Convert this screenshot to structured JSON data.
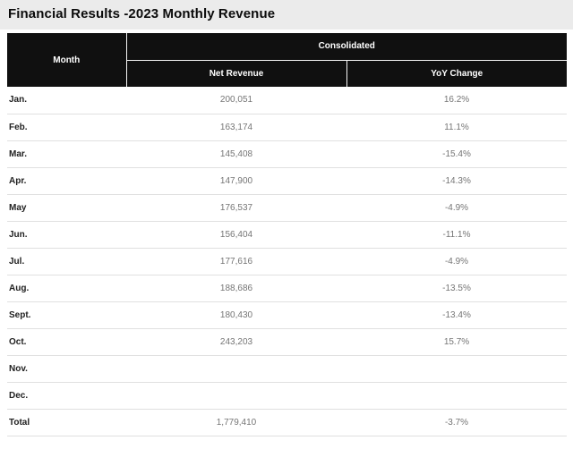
{
  "page": {
    "title": "Financial Results -2023 Monthly Revenue"
  },
  "table": {
    "header": {
      "month": "Month",
      "group": "Consolidated",
      "columns": [
        "Net Revenue",
        "YoY Change"
      ]
    },
    "rows": [
      {
        "month": "Jan.",
        "net_revenue": "200,051",
        "yoy_change": "16.2%"
      },
      {
        "month": "Feb.",
        "net_revenue": "163,174",
        "yoy_change": "11.1%"
      },
      {
        "month": "Mar.",
        "net_revenue": "145,408",
        "yoy_change": "-15.4%"
      },
      {
        "month": "Apr.",
        "net_revenue": "147,900",
        "yoy_change": "-14.3%"
      },
      {
        "month": "May",
        "net_revenue": "176,537",
        "yoy_change": "-4.9%"
      },
      {
        "month": "Jun.",
        "net_revenue": "156,404",
        "yoy_change": "-11.1%"
      },
      {
        "month": "Jul.",
        "net_revenue": "177,616",
        "yoy_change": "-4.9%"
      },
      {
        "month": "Aug.",
        "net_revenue": "188,686",
        "yoy_change": "-13.5%"
      },
      {
        "month": "Sept.",
        "net_revenue": "180,430",
        "yoy_change": "-13.4%"
      },
      {
        "month": "Oct.",
        "net_revenue": "243,203",
        "yoy_change": "15.7%"
      },
      {
        "month": "Nov.",
        "net_revenue": "",
        "yoy_change": ""
      },
      {
        "month": "Dec.",
        "net_revenue": "",
        "yoy_change": ""
      },
      {
        "month": "Total",
        "net_revenue": "1,779,410",
        "yoy_change": "-3.7%"
      }
    ]
  },
  "colors": {
    "title_band_bg": "#ebebeb",
    "header_bg": "#101010",
    "header_text": "#ffffff",
    "row_divider": "#e0e0e0",
    "month_text": "#212121",
    "value_text": "#757575"
  },
  "chart_data": {
    "type": "table",
    "title": "Financial Results -2023 Monthly Revenue",
    "column_group": "Consolidated",
    "columns": [
      "Month",
      "Net Revenue",
      "YoY Change"
    ],
    "rows": [
      [
        "Jan.",
        200051,
        16.2
      ],
      [
        "Feb.",
        163174,
        11.1
      ],
      [
        "Mar.",
        145408,
        -15.4
      ],
      [
        "Apr.",
        147900,
        -14.3
      ],
      [
        "May",
        176537,
        -4.9
      ],
      [
        "Jun.",
        156404,
        -11.1
      ],
      [
        "Jul.",
        177616,
        -4.9
      ],
      [
        "Aug.",
        188686,
        -13.5
      ],
      [
        "Sept.",
        180430,
        -13.4
      ],
      [
        "Oct.",
        243203,
        15.7
      ],
      [
        "Nov.",
        null,
        null
      ],
      [
        "Dec.",
        null,
        null
      ],
      [
        "Total",
        1779410,
        -3.7
      ]
    ]
  }
}
